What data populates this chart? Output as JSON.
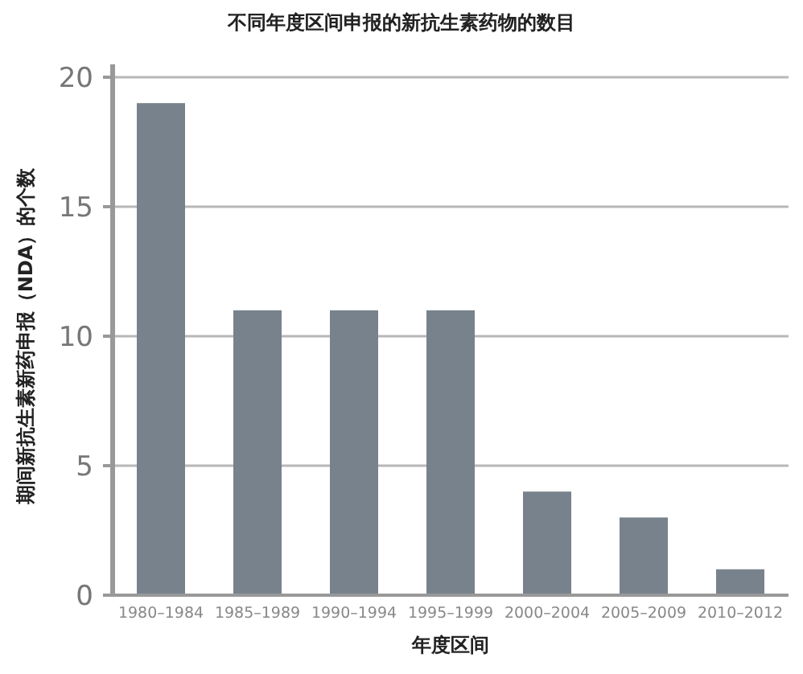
{
  "chart_data": {
    "type": "bar",
    "title": "不同年度区间申报的新抗生素药物的数目",
    "xlabel": "年度区间",
    "ylabel": "期间新抗生素新药申报（NDA）的个数",
    "categories": [
      "1980–1984",
      "1985–1989",
      "1990–1994",
      "1995–1999",
      "2000–2004",
      "2005–2009",
      "2010–2012"
    ],
    "values": [
      19,
      11,
      11,
      11,
      4,
      3,
      1
    ],
    "color": "#78828c",
    "ylim": [
      0,
      20
    ],
    "yticks": [
      0,
      5,
      10,
      15,
      20
    ],
    "grid": "y"
  }
}
